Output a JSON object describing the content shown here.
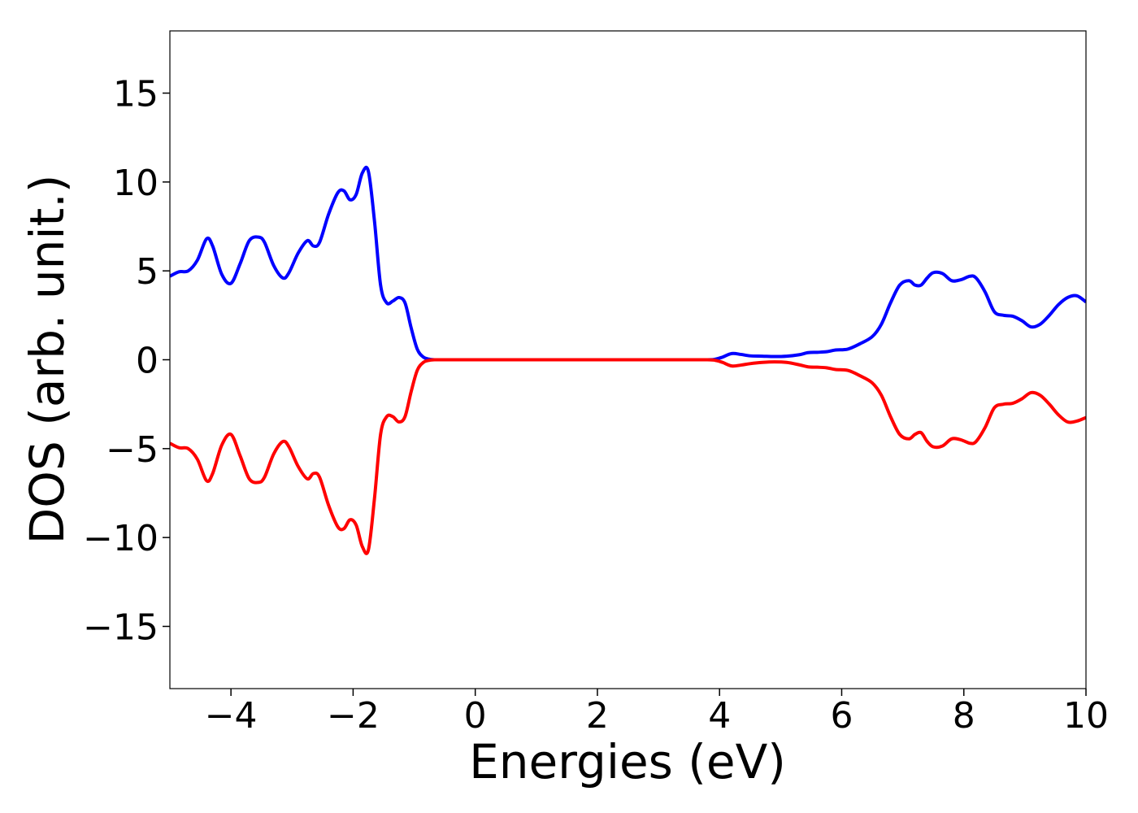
{
  "chart_data": {
    "type": "line",
    "xlabel": "Energies (eV)",
    "ylabel": "DOS (arb. unit.)",
    "xlim": [
      -5,
      10
    ],
    "ylim": [
      -18.5,
      18.5
    ],
    "x_ticks": [
      -4,
      -2,
      0,
      2,
      4,
      6,
      8,
      10
    ],
    "x_tick_labels": [
      "−4",
      "−2",
      "0",
      "2",
      "4",
      "6",
      "8",
      "10"
    ],
    "y_ticks": [
      -15,
      -10,
      -5,
      0,
      5,
      10,
      15
    ],
    "y_tick_labels": [
      "−15",
      "−10",
      "−5",
      "0",
      "5",
      "10",
      "15"
    ],
    "grid": false,
    "series": [
      {
        "color": "#0000ff",
        "x": [
          -5.0,
          -4.85,
          -4.7,
          -4.55,
          -4.4,
          -4.3,
          -4.15,
          -4.0,
          -3.85,
          -3.7,
          -3.55,
          -3.45,
          -3.3,
          -3.15,
          -3.05,
          -2.9,
          -2.75,
          -2.65,
          -2.55,
          -2.4,
          -2.25,
          -2.15,
          -2.05,
          -1.95,
          -1.85,
          -1.75,
          -1.65,
          -1.55,
          -1.45,
          -1.35,
          -1.25,
          -1.15,
          -1.05,
          -0.95,
          -0.85,
          -0.75,
          -0.65,
          -0.55,
          0.0,
          1.0,
          2.0,
          3.0,
          3.8,
          3.95,
          4.05,
          4.2,
          4.35,
          4.5,
          4.7,
          4.9,
          5.1,
          5.3,
          5.45,
          5.6,
          5.75,
          5.9,
          6.1,
          6.3,
          6.5,
          6.65,
          6.8,
          6.95,
          7.1,
          7.2,
          7.3,
          7.4,
          7.5,
          7.65,
          7.8,
          7.95,
          8.1,
          8.2,
          8.35,
          8.5,
          8.65,
          8.8,
          8.95,
          9.1,
          9.25,
          9.4,
          9.55,
          9.7,
          9.85,
          10.0
        ],
        "y": [
          4.7,
          4.95,
          5.0,
          5.6,
          6.8,
          6.4,
          4.8,
          4.3,
          5.4,
          6.7,
          6.9,
          6.6,
          5.3,
          4.6,
          4.9,
          6.0,
          6.7,
          6.4,
          6.6,
          8.2,
          9.4,
          9.5,
          9.0,
          9.3,
          10.5,
          10.6,
          7.8,
          4.2,
          3.2,
          3.3,
          3.5,
          3.2,
          1.8,
          0.6,
          0.15,
          0.03,
          0.0,
          0.0,
          0.0,
          0.0,
          0.0,
          0.0,
          0.0,
          0.05,
          0.15,
          0.35,
          0.3,
          0.22,
          0.2,
          0.18,
          0.2,
          0.28,
          0.4,
          0.42,
          0.45,
          0.55,
          0.6,
          0.9,
          1.3,
          2.0,
          3.2,
          4.2,
          4.45,
          4.2,
          4.2,
          4.6,
          4.9,
          4.85,
          4.45,
          4.5,
          4.7,
          4.6,
          3.8,
          2.7,
          2.5,
          2.45,
          2.2,
          1.85,
          2.0,
          2.5,
          3.1,
          3.5,
          3.6,
          3.25
        ]
      },
      {
        "color": "#ff0000",
        "x": [
          -5.0,
          -4.85,
          -4.7,
          -4.55,
          -4.4,
          -4.3,
          -4.15,
          -4.0,
          -3.85,
          -3.7,
          -3.55,
          -3.45,
          -3.3,
          -3.15,
          -3.05,
          -2.9,
          -2.75,
          -2.65,
          -2.55,
          -2.4,
          -2.25,
          -2.15,
          -2.05,
          -1.95,
          -1.85,
          -1.75,
          -1.65,
          -1.55,
          -1.45,
          -1.35,
          -1.25,
          -1.15,
          -1.05,
          -0.95,
          -0.85,
          -0.75,
          -0.65,
          -0.55,
          0.0,
          1.0,
          2.0,
          3.0,
          3.8,
          3.95,
          4.05,
          4.2,
          4.35,
          4.5,
          4.7,
          4.9,
          5.1,
          5.3,
          5.45,
          5.6,
          5.75,
          5.9,
          6.1,
          6.3,
          6.5,
          6.65,
          6.8,
          6.95,
          7.1,
          7.2,
          7.3,
          7.4,
          7.5,
          7.65,
          7.8,
          7.95,
          8.1,
          8.2,
          8.35,
          8.5,
          8.65,
          8.8,
          8.95,
          9.1,
          9.25,
          9.4,
          9.55,
          9.7,
          9.85,
          10.0
        ],
        "y": [
          -4.7,
          -4.95,
          -5.0,
          -5.6,
          -6.8,
          -6.4,
          -4.8,
          -4.2,
          -5.4,
          -6.7,
          -6.9,
          -6.6,
          -5.3,
          -4.6,
          -4.9,
          -6.0,
          -6.7,
          -6.4,
          -6.6,
          -8.2,
          -9.4,
          -9.5,
          -9.0,
          -9.3,
          -10.5,
          -10.7,
          -7.8,
          -4.2,
          -3.2,
          -3.2,
          -3.5,
          -3.2,
          -1.8,
          -0.6,
          -0.15,
          -0.03,
          0.0,
          0.0,
          0.0,
          0.0,
          0.0,
          0.0,
          0.0,
          -0.05,
          -0.15,
          -0.35,
          -0.3,
          -0.22,
          -0.15,
          -0.12,
          -0.15,
          -0.28,
          -0.4,
          -0.42,
          -0.45,
          -0.55,
          -0.6,
          -0.9,
          -1.3,
          -2.0,
          -3.2,
          -4.2,
          -4.45,
          -4.2,
          -4.1,
          -4.6,
          -4.9,
          -4.85,
          -4.45,
          -4.5,
          -4.7,
          -4.6,
          -3.8,
          -2.7,
          -2.5,
          -2.45,
          -2.2,
          -1.85,
          -2.0,
          -2.5,
          -3.1,
          -3.5,
          -3.45,
          -3.25
        ]
      }
    ]
  }
}
